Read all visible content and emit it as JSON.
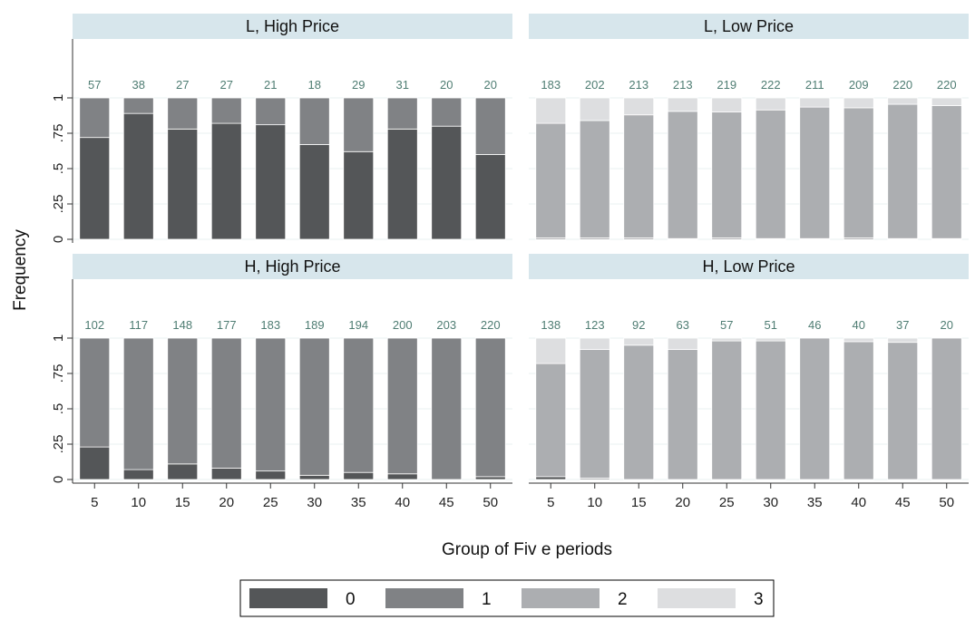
{
  "chart_data": {
    "type": "bar",
    "stacked": true,
    "x": [
      5,
      10,
      15,
      20,
      25,
      30,
      35,
      40,
      45,
      50
    ],
    "xlabel": "Group of Fiv e periods",
    "ylabel": "Frequency",
    "ylim": [
      0,
      1
    ],
    "yticks": [
      "0",
      ".25",
      ".5",
      ".75",
      "1"
    ],
    "ytick_values": [
      0,
      0.25,
      0.5,
      0.75,
      1
    ],
    "grid": true,
    "legend": {
      "placement": "bottom",
      "labels": [
        "0",
        "1",
        "2",
        "3"
      ],
      "colors": [
        "#545658",
        "#808285",
        "#acaeb1",
        "#dddee0"
      ]
    },
    "panels": [
      {
        "title": "L, High Price",
        "counts": [
          "57",
          "38",
          "27",
          "27",
          "21",
          "18",
          "29",
          "31",
          "20",
          "20"
        ],
        "series": [
          {
            "category": "0",
            "values": [
              0.72,
              0.89,
              0.78,
              0.82,
              0.81,
              0.67,
              0.62,
              0.78,
              0.8,
              0.6
            ]
          },
          {
            "category": "1",
            "values": [
              0.28,
              0.11,
              0.22,
              0.18,
              0.19,
              0.33,
              0.38,
              0.22,
              0.2,
              0.4
            ]
          }
        ]
      },
      {
        "title": "L, Low Price",
        "counts": [
          "183",
          "202",
          "213",
          "213",
          "219",
          "222",
          "211",
          "209",
          "220",
          "220"
        ],
        "series": [
          {
            "category": "1",
            "values": [
              0.01,
              0.01,
              0.01,
              0.005,
              0.01,
              0.005,
              0.005,
              0.01,
              0.005,
              0.005
            ]
          },
          {
            "category": "2",
            "values": [
              0.81,
              0.83,
              0.87,
              0.9,
              0.89,
              0.91,
              0.93,
              0.92,
              0.95,
              0.94
            ]
          },
          {
            "category": "3",
            "values": [
              0.18,
              0.16,
              0.12,
              0.095,
              0.1,
              0.085,
              0.065,
              0.07,
              0.045,
              0.055
            ]
          }
        ]
      },
      {
        "title": "H, High Price",
        "counts": [
          "102",
          "117",
          "148",
          "177",
          "183",
          "189",
          "194",
          "200",
          "203",
          "220"
        ],
        "series": [
          {
            "category": "0",
            "values": [
              0.23,
              0.07,
              0.11,
              0.08,
              0.06,
              0.03,
              0.05,
              0.04,
              0.0,
              0.02
            ]
          },
          {
            "category": "1",
            "values": [
              0.77,
              0.93,
              0.89,
              0.92,
              0.94,
              0.97,
              0.95,
              0.96,
              1.0,
              0.98
            ]
          }
        ]
      },
      {
        "title": "H, Low Price",
        "counts": [
          "138",
          "123",
          "92",
          "63",
          "57",
          "51",
          "46",
          "40",
          "37",
          "20"
        ],
        "series": [
          {
            "category": "0",
            "values": [
              0.02,
              0.0,
              0.0,
              0.0,
              0.0,
              0.0,
              0.0,
              0.0,
              0.0,
              0.0
            ]
          },
          {
            "category": "1",
            "values": [
              0.0,
              0.01,
              0.0,
              0.0,
              0.0,
              0.0,
              0.0,
              0.0,
              0.0,
              0.0
            ]
          },
          {
            "category": "2",
            "values": [
              0.8,
              0.91,
              0.95,
              0.92,
              0.98,
              0.98,
              1.0,
              0.975,
              0.97,
              1.0
            ]
          },
          {
            "category": "3",
            "values": [
              0.18,
              0.08,
              0.05,
              0.08,
              0.02,
              0.02,
              0.0,
              0.025,
              0.03,
              0.0
            ]
          }
        ]
      }
    ]
  }
}
